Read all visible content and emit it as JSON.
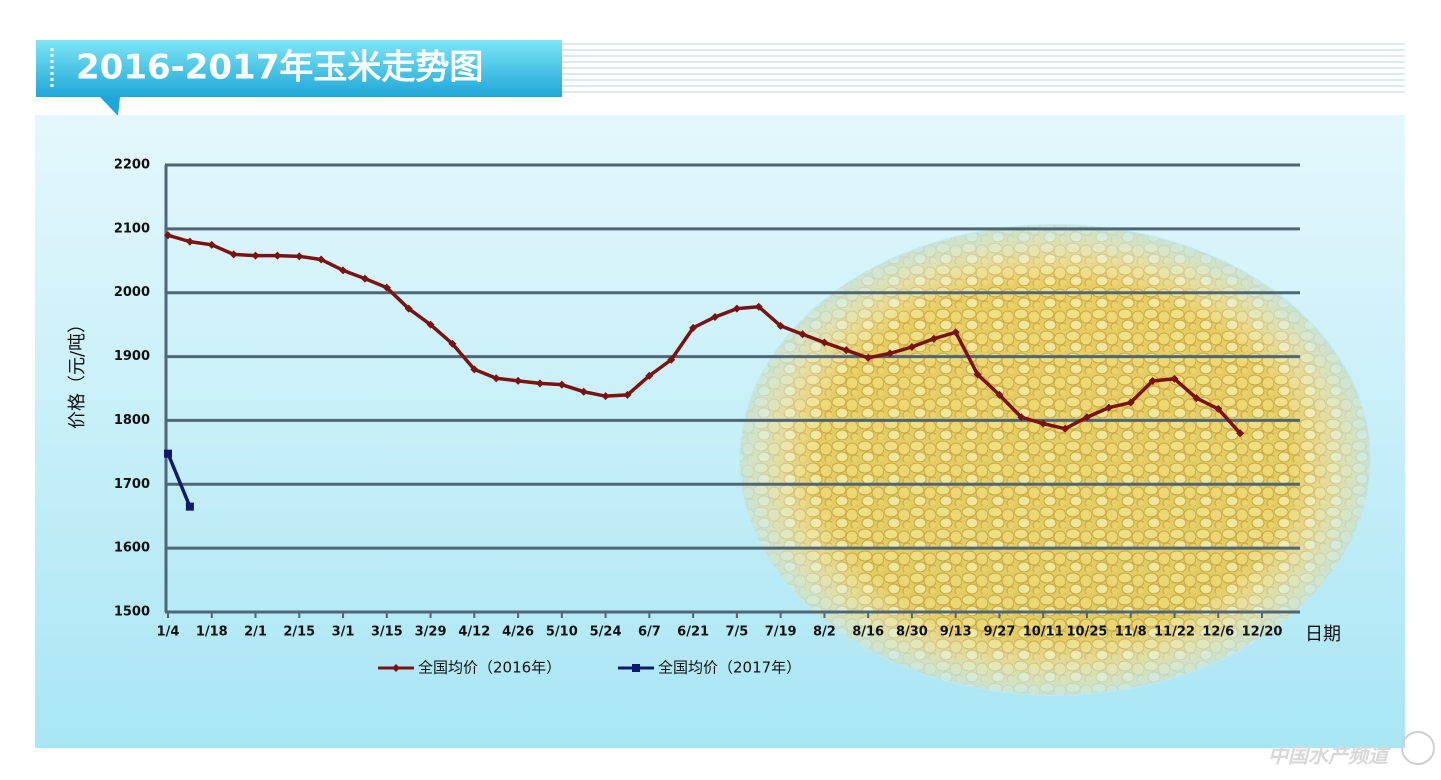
{
  "chart_data": {
    "type": "line",
    "title": "2016-2017年玉米走势图",
    "y_label": "价格（元/吨）",
    "x_label": "日期",
    "categories": [
      "1/4",
      null,
      "1/18",
      null,
      "2/1",
      null,
      "2/15",
      null,
      "3/1",
      null,
      "3/15",
      null,
      "3/29",
      null,
      "4/12",
      null,
      "4/26",
      null,
      "5/10",
      null,
      "5/24",
      null,
      "6/7",
      null,
      "6/21",
      null,
      "7/5",
      null,
      "7/19",
      null,
      "8/2",
      null,
      "8/16",
      null,
      "8/30",
      null,
      "9/13",
      null,
      "9/27",
      null,
      "10/11",
      null,
      "10/25",
      null,
      "11/8",
      null,
      "11/22",
      null,
      "12/6",
      null,
      "12/20",
      null
    ],
    "series": [
      {
        "name": "全国均价（2016年）",
        "color": "#7a1212",
        "marker": "diamond",
        "values": [
          2090,
          2080,
          2075,
          2060,
          2058,
          2058,
          2057,
          2052,
          2035,
          2022,
          2008,
          1975,
          1950,
          1920,
          1880,
          1866,
          1862,
          1858,
          1856,
          1845,
          1838,
          1840,
          1870,
          1895,
          1945,
          1962,
          1975,
          1978,
          1948,
          1935,
          1922,
          1910,
          1898,
          1905,
          1915,
          1928,
          1938,
          1872,
          1840,
          1805,
          1795,
          1787,
          1805,
          1820,
          1828,
          1862,
          1865,
          1835,
          1818,
          1780,
          null,
          null
        ]
      },
      {
        "name": "全国均价（2017年）",
        "color": "#0f1a6b",
        "marker": "square",
        "values": [
          1748,
          1665,
          null,
          null,
          null,
          null,
          null,
          null,
          null,
          null,
          null,
          null,
          null,
          null,
          null,
          null,
          null,
          null,
          null,
          null,
          null,
          null,
          null,
          null,
          null,
          null,
          null,
          null,
          null,
          null,
          null,
          null,
          null,
          null,
          null,
          null,
          null,
          null,
          null,
          null,
          null,
          null,
          null,
          null,
          null,
          null,
          null,
          null,
          null,
          null,
          null,
          null
        ]
      }
    ],
    "ylim": [
      1500,
      2200
    ],
    "yticks": [
      1500,
      1600,
      1700,
      1800,
      1900,
      2000,
      2100,
      2200
    ],
    "grid": true,
    "legend": "bottom"
  },
  "watermark": "中国水产频道"
}
